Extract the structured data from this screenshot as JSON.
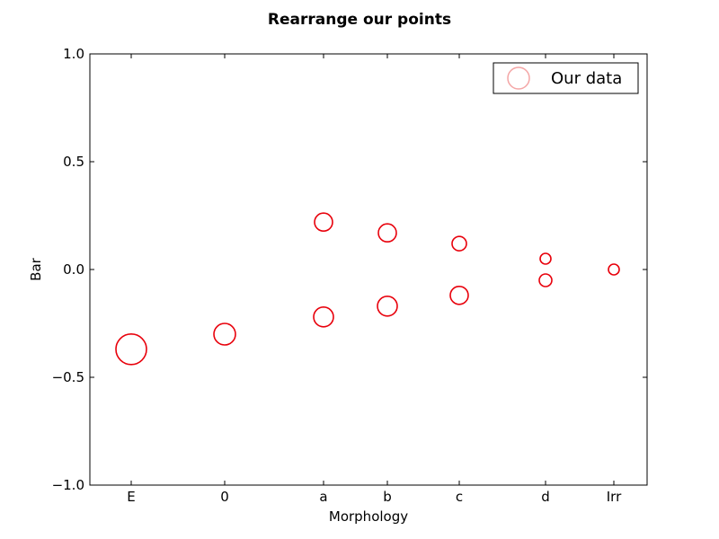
{
  "chart_data": {
    "type": "scatter",
    "title": "Rearrange our points",
    "xlabel": "Morphology",
    "ylabel": "Bar",
    "ylim": [
      -1.0,
      1.0
    ],
    "yticks": [
      1.0,
      0.5,
      0.0,
      -0.5,
      -1.0
    ],
    "ytick_labels": [
      "1.0",
      "0.5",
      "0.0",
      "−0.5",
      "−1.0"
    ],
    "categories": [
      "E",
      "0",
      "a",
      "b",
      "c",
      "d",
      "Irr"
    ],
    "grid": false,
    "legend_position": "top-right",
    "series": [
      {
        "name": "Our data",
        "color": "#e8000b",
        "marker": "open-circle",
        "points": [
          {
            "category": "E",
            "y": -0.37
          },
          {
            "category": "0",
            "y": -0.3
          },
          {
            "category": "a",
            "y": 0.22
          },
          {
            "category": "a",
            "y": -0.22
          },
          {
            "category": "b",
            "y": 0.17
          },
          {
            "category": "b",
            "y": -0.17
          },
          {
            "category": "c",
            "y": 0.12
          },
          {
            "category": "c",
            "y": -0.12
          },
          {
            "category": "d",
            "y": 0.05
          },
          {
            "category": "d",
            "y": -0.05
          },
          {
            "category": "Irr",
            "y": 0.0
          }
        ]
      }
    ]
  }
}
